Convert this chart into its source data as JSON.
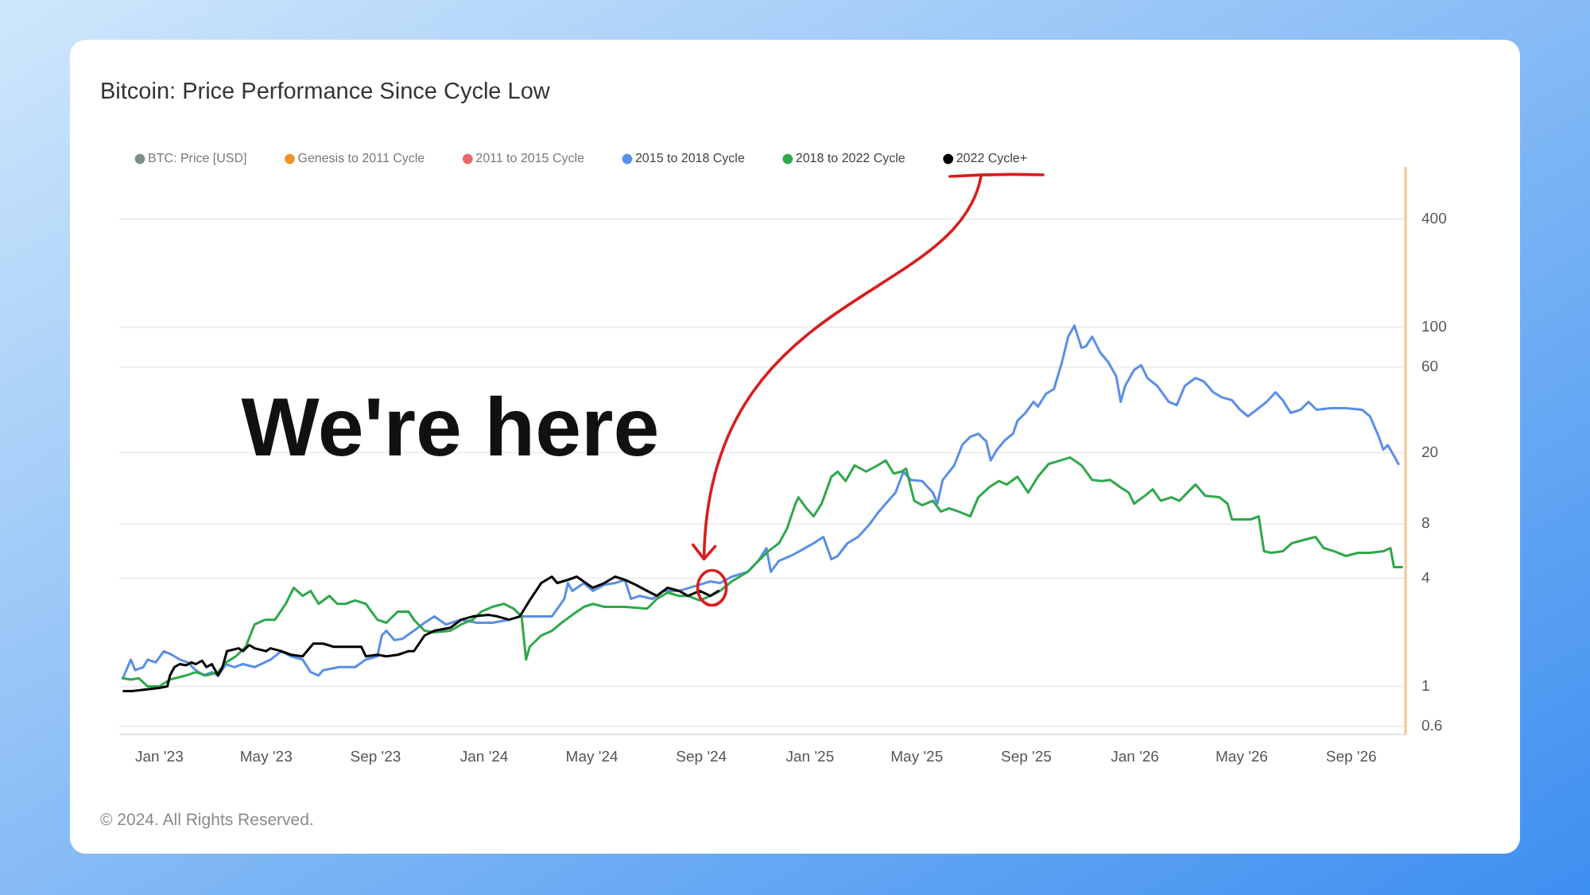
{
  "chart_data": {
    "type": "line",
    "title": "Bitcoin: Price Performance Since Cycle Low",
    "log": "y",
    "grid": "y",
    "legend": "top left",
    "xlim": [
      "2022-11-17",
      "2026-11-01"
    ],
    "xticks": [
      {
        "value": "2023-01-01",
        "label": "Jan '23"
      },
      {
        "value": "2023-05-01",
        "label": "May '23"
      },
      {
        "value": "2023-09-01",
        "label": "Sep '23"
      },
      {
        "value": "2024-01-01",
        "label": "Jan '24"
      },
      {
        "value": "2024-05-01",
        "label": "May '24"
      },
      {
        "value": "2024-09-01",
        "label": "Sep '24"
      },
      {
        "value": "2025-01-01",
        "label": "Jan '25"
      },
      {
        "value": "2025-05-01",
        "label": "May '25"
      },
      {
        "value": "2025-09-01",
        "label": "Sep '25"
      },
      {
        "value": "2026-01-01",
        "label": "Jan '26"
      },
      {
        "value": "2026-05-01",
        "label": "May '26"
      },
      {
        "value": "2026-09-01",
        "label": "Sep '26"
      }
    ],
    "ylim": [
      0.54,
      780
    ],
    "yticks": [
      0.6,
      1,
      4,
      8,
      20,
      60,
      100,
      400
    ],
    "series": [
      {
        "name": "BTC: Price [USD]",
        "color": "#7f8c8d"
      },
      {
        "name": "Genesis to 2011 Cycle",
        "color": "#f0932b"
      },
      {
        "name": "2011 to 2015 Cycle",
        "color": "#e8676b"
      },
      {
        "name": "2015 to 2018 Cycle",
        "color": "#5b8ee8",
        "x": [
          "2022-11-21",
          "2022-11-30",
          "2022-12-05",
          "2022-12-14",
          "2022-12-19",
          "2022-12-28",
          "2023-01-06",
          "2023-01-15",
          "2023-01-24",
          "2023-02-02",
          "2023-02-11",
          "2023-02-20",
          "2023-03-01",
          "2023-03-08",
          "2023-03-17",
          "2023-03-26",
          "2023-04-05",
          "2023-04-18",
          "2023-05-06",
          "2023-05-18",
          "2023-05-29",
          "2023-06-11",
          "2023-06-20",
          "2023-06-29",
          "2023-07-04",
          "2023-07-22",
          "2023-08-09",
          "2023-08-21",
          "2023-09-03",
          "2023-09-08",
          "2023-09-13",
          "2023-09-22",
          "2023-10-01",
          "2023-10-14",
          "2023-10-26",
          "2023-11-06",
          "2023-11-19",
          "2023-12-06",
          "2023-12-24",
          "2024-01-10",
          "2024-01-29",
          "2024-02-10",
          "2024-03-05",
          "2024-03-17",
          "2024-03-31",
          "2024-04-04",
          "2024-04-09",
          "2024-04-22",
          "2024-05-02",
          "2024-05-15",
          "2024-05-27",
          "2024-06-07",
          "2024-06-14",
          "2024-06-24",
          "2024-07-08",
          "2024-07-20",
          "2024-08-07",
          "2024-08-30",
          "2024-09-11",
          "2024-09-22",
          "2024-10-05",
          "2024-10-23",
          "2024-11-04",
          "2024-11-13",
          "2024-11-18",
          "2024-11-27",
          "2024-12-10",
          "2024-12-20",
          "2025-01-05",
          "2025-01-16",
          "2025-01-25",
          "2025-02-01",
          "2025-02-12",
          "2025-02-24",
          "2025-03-09",
          "2025-03-18",
          "2025-03-27",
          "2025-04-07",
          "2025-04-16",
          "2025-04-24",
          "2025-05-07",
          "2025-05-19",
          "2025-05-24",
          "2025-05-30",
          "2025-06-12",
          "2025-06-21",
          "2025-06-30",
          "2025-07-09",
          "2025-07-18",
          "2025-07-23",
          "2025-07-30",
          "2025-08-08",
          "2025-08-17",
          "2025-08-22",
          "2025-08-31",
          "2025-09-09",
          "2025-09-14",
          "2025-09-23",
          "2025-10-02",
          "2025-10-11",
          "2025-10-18",
          "2025-10-25",
          "2025-11-02",
          "2025-11-07",
          "2025-11-14",
          "2025-11-23",
          "2025-12-02",
          "2025-12-11",
          "2025-12-16",
          "2025-12-21",
          "2025-12-31",
          "2026-01-08",
          "2026-01-15",
          "2026-01-26",
          "2026-02-08",
          "2026-02-17",
          "2026-02-26",
          "2026-03-10",
          "2026-03-19",
          "2026-03-30",
          "2026-04-08",
          "2026-04-20",
          "2026-04-29",
          "2026-05-08",
          "2026-05-20",
          "2026-05-29",
          "2026-06-08",
          "2026-06-16",
          "2026-06-25",
          "2026-07-06",
          "2026-07-15",
          "2026-07-24",
          "2026-08-09",
          "2026-08-26",
          "2026-09-13",
          "2026-09-22",
          "2026-10-02",
          "2026-10-07",
          "2026-10-12",
          "2026-10-19",
          "2026-10-24"
        ],
        "values": [
          1.11,
          1.41,
          1.23,
          1.28,
          1.41,
          1.36,
          1.57,
          1.5,
          1.41,
          1.36,
          1.23,
          1.15,
          1.2,
          1.15,
          1.33,
          1.28,
          1.33,
          1.28,
          1.41,
          1.57,
          1.47,
          1.41,
          1.2,
          1.15,
          1.23,
          1.28,
          1.28,
          1.41,
          1.47,
          1.92,
          2.04,
          1.81,
          1.84,
          2.04,
          2.26,
          2.45,
          2.21,
          2.35,
          2.26,
          2.26,
          2.35,
          2.45,
          2.45,
          2.45,
          3.07,
          3.76,
          3.4,
          3.76,
          3.4,
          3.68,
          3.76,
          3.92,
          3.07,
          3.19,
          3.07,
          3.4,
          3.4,
          3.68,
          3.84,
          3.76,
          4.08,
          4.34,
          5.0,
          5.89,
          4.34,
          5.0,
          5.32,
          5.65,
          6.26,
          6.79,
          5.1,
          5.32,
          6.26,
          6.79,
          8.0,
          9.22,
          10.4,
          12.0,
          15.7,
          14.1,
          13.9,
          12.0,
          10.4,
          14.1,
          17.0,
          22.1,
          24.5,
          25.5,
          23.1,
          18.1,
          20.8,
          23.5,
          25.5,
          30.1,
          33.3,
          38.4,
          36.1,
          42.5,
          45.2,
          63.9,
          88.5,
          102,
          76.7,
          78.3,
          88.5,
          72.2,
          63.9,
          53.2,
          38.4,
          47.1,
          57.7,
          61.4,
          52.1,
          47.1,
          38.4,
          36.8,
          47.1,
          52.1,
          50.0,
          43.4,
          40.8,
          39.2,
          34.7,
          31.9,
          35.4,
          38.4,
          43.4,
          39.2,
          33.3,
          34.7,
          38.4,
          34.7,
          35.4,
          35.4,
          34.7,
          31.9,
          24.5,
          20.8,
          22.1,
          19.2,
          17.3
        ]
      },
      {
        "name": "2018 to 2022 Cycle",
        "color": "#2ea84a",
        "x": [
          "2022-11-21",
          "2022-11-30",
          "2022-12-09",
          "2022-12-19",
          "2023-01-01",
          "2023-01-13",
          "2023-01-31",
          "2023-02-11",
          "2023-02-23",
          "2023-03-08",
          "2023-03-17",
          "2023-03-28",
          "2023-04-08",
          "2023-04-18",
          "2023-04-30",
          "2023-05-11",
          "2023-05-23",
          "2023-06-01",
          "2023-06-11",
          "2023-06-20",
          "2023-06-29",
          "2023-07-11",
          "2023-07-20",
          "2023-07-29",
          "2023-08-09",
          "2023-08-21",
          "2023-09-03",
          "2023-09-13",
          "2023-09-26",
          "2023-10-08",
          "2023-10-14",
          "2023-10-26",
          "2023-11-06",
          "2023-11-24",
          "2023-12-06",
          "2023-12-19",
          "2023-12-29",
          "2024-01-10",
          "2024-01-23",
          "2024-02-03",
          "2024-02-12",
          "2024-02-17",
          "2024-02-21",
          "2024-03-05",
          "2024-03-17",
          "2024-03-28",
          "2024-04-09",
          "2024-04-22",
          "2024-05-02",
          "2024-05-15",
          "2024-06-07",
          "2024-07-02",
          "2024-07-13",
          "2024-07-25",
          "2024-08-07",
          "2024-08-17",
          "2024-08-30",
          "2024-09-11",
          "2024-09-22",
          "2024-10-05",
          "2024-10-23",
          "2024-11-04",
          "2024-11-15",
          "2024-11-27",
          "2024-12-06",
          "2024-12-15",
          "2024-12-19",
          "2024-12-28",
          "2025-01-05",
          "2025-01-14",
          "2025-01-25",
          "2025-02-01",
          "2025-02-10",
          "2025-02-20",
          "2025-03-05",
          "2025-03-18",
          "2025-03-27",
          "2025-04-05",
          "2025-04-14",
          "2025-04-19",
          "2025-04-28",
          "2025-05-07",
          "2025-05-19",
          "2025-05-28",
          "2025-06-06",
          "2025-06-17",
          "2025-06-30",
          "2025-07-09",
          "2025-07-21",
          "2025-08-01",
          "2025-08-10",
          "2025-08-22",
          "2025-09-03",
          "2025-09-14",
          "2025-09-26",
          "2025-10-09",
          "2025-10-20",
          "2025-11-02",
          "2025-11-14",
          "2025-11-25",
          "2025-12-04",
          "2025-12-16",
          "2025-12-25",
          "2025-12-31",
          "2026-01-12",
          "2026-01-21",
          "2026-01-30",
          "2026-02-11",
          "2026-02-20",
          "2026-03-01",
          "2026-03-10",
          "2026-03-21",
          "2026-04-06",
          "2026-04-15",
          "2026-04-20",
          "2026-04-29",
          "2026-05-11",
          "2026-05-20",
          "2026-05-26",
          "2026-06-03",
          "2026-06-16",
          "2026-06-26",
          "2026-07-09",
          "2026-07-23",
          "2026-08-01",
          "2026-08-13",
          "2026-08-26",
          "2026-09-09",
          "2026-09-22",
          "2026-10-07",
          "2026-10-15",
          "2026-10-19",
          "2026-10-28"
        ],
        "values": [
          1.11,
          1.09,
          1.11,
          1.0,
          1.0,
          1.09,
          1.15,
          1.2,
          1.15,
          1.2,
          1.36,
          1.47,
          1.66,
          2.21,
          2.35,
          2.35,
          2.88,
          3.54,
          3.19,
          3.4,
          2.88,
          3.19,
          2.88,
          2.88,
          3.01,
          2.88,
          2.35,
          2.26,
          2.61,
          2.61,
          2.35,
          2.04,
          2.0,
          2.04,
          2.21,
          2.35,
          2.61,
          2.77,
          2.88,
          2.71,
          2.45,
          1.41,
          1.66,
          1.92,
          2.04,
          2.26,
          2.5,
          2.77,
          2.88,
          2.77,
          2.77,
          2.71,
          3.07,
          3.33,
          3.19,
          3.19,
          3.01,
          3.19,
          3.4,
          3.84,
          4.34,
          5.0,
          5.65,
          6.26,
          7.52,
          10.2,
          11.3,
          9.8,
          8.85,
          10.4,
          14.7,
          15.7,
          13.9,
          17.0,
          15.7,
          17.0,
          18.1,
          15.3,
          15.7,
          16.3,
          10.8,
          10.2,
          10.8,
          9.4,
          9.8,
          9.4,
          8.85,
          11.3,
          12.8,
          13.9,
          13.3,
          14.7,
          12.0,
          14.7,
          17.3,
          18.1,
          18.8,
          17.0,
          14.1,
          13.9,
          14.1,
          12.8,
          12.0,
          10.4,
          11.5,
          12.5,
          10.8,
          11.3,
          10.8,
          12.0,
          13.3,
          11.5,
          11.3,
          10.4,
          8.5,
          8.5,
          8.5,
          8.85,
          5.65,
          5.54,
          5.65,
          6.26,
          6.52,
          6.79,
          5.89,
          5.65,
          5.32,
          5.54,
          5.54,
          5.65,
          5.89,
          4.61,
          4.61
        ]
      },
      {
        "name": "2022 Cycle+",
        "color": "#000000",
        "x": [
          "2022-11-22",
          "2022-12-01",
          "2023-01-01",
          "2023-01-10",
          "2023-01-13",
          "2023-01-18",
          "2023-01-24",
          "2023-01-31",
          "2023-02-06",
          "2023-02-11",
          "2023-02-18",
          "2023-02-23",
          "2023-03-01",
          "2023-03-08",
          "2023-03-13",
          "2023-03-18",
          "2023-03-31",
          "2023-04-05",
          "2023-04-12",
          "2023-04-18",
          "2023-05-01",
          "2023-05-06",
          "2023-05-18",
          "2023-05-29",
          "2023-06-11",
          "2023-06-23",
          "2023-07-04",
          "2023-07-16",
          "2023-07-29",
          "2023-08-16",
          "2023-08-21",
          "2023-09-03",
          "2023-09-13",
          "2023-09-26",
          "2023-10-08",
          "2023-10-14",
          "2023-10-26",
          "2023-11-06",
          "2023-11-24",
          "2023-12-06",
          "2023-12-19",
          "2024-01-06",
          "2024-01-16",
          "2024-01-29",
          "2024-02-10",
          "2024-02-21",
          "2024-03-05",
          "2024-03-17",
          "2024-03-23",
          "2024-04-04",
          "2024-04-14",
          "2024-04-27",
          "2024-05-02",
          "2024-05-15",
          "2024-05-27",
          "2024-06-07",
          "2024-06-19",
          "2024-07-02",
          "2024-07-13",
          "2024-07-25",
          "2024-08-07",
          "2024-08-17",
          "2024-08-30",
          "2024-09-11",
          "2024-09-20"
        ],
        "values": [
          0.94,
          0.94,
          0.98,
          1.0,
          1.15,
          1.28,
          1.33,
          1.31,
          1.36,
          1.33,
          1.39,
          1.28,
          1.33,
          1.15,
          1.28,
          1.57,
          1.63,
          1.57,
          1.7,
          1.63,
          1.57,
          1.63,
          1.57,
          1.5,
          1.47,
          1.73,
          1.73,
          1.66,
          1.66,
          1.66,
          1.47,
          1.5,
          1.47,
          1.5,
          1.57,
          1.57,
          1.92,
          2.04,
          2.12,
          2.35,
          2.45,
          2.5,
          2.45,
          2.35,
          2.45,
          3.01,
          3.76,
          4.08,
          3.76,
          3.92,
          4.08,
          3.68,
          3.54,
          3.76,
          4.08,
          3.92,
          3.68,
          3.4,
          3.19,
          3.54,
          3.4,
          3.19,
          3.4,
          3.19,
          3.4
        ]
      }
    ],
    "annotations": [
      {
        "text": "We're here",
        "x": "2024-09-20",
        "y": 3.4
      },
      "© 2024. All Rights Reserved."
    ]
  }
}
